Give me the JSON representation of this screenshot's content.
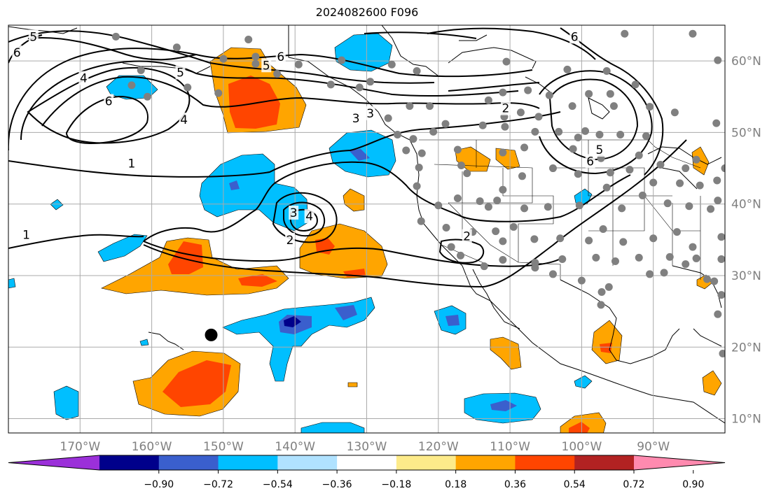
{
  "title": "2024082600 F096",
  "map": {
    "lon_range": [
      -180,
      -80
    ],
    "lat_range": [
      8,
      65
    ],
    "lon_ticks": [
      {
        "value": -170,
        "label": "170°W"
      },
      {
        "value": -160,
        "label": "160°W"
      },
      {
        "value": -150,
        "label": "150°W"
      },
      {
        "value": -140,
        "label": "140°W"
      },
      {
        "value": -130,
        "label": "130°W"
      },
      {
        "value": -120,
        "label": "120°W"
      },
      {
        "value": -110,
        "label": "110°W"
      },
      {
        "value": -100,
        "label": "100°W"
      },
      {
        "value": -90,
        "label": "90°W"
      }
    ],
    "lat_ticks": [
      {
        "value": 60,
        "label": "60°N"
      },
      {
        "value": 50,
        "label": "50°N"
      },
      {
        "value": 40,
        "label": "40°N"
      },
      {
        "value": 30,
        "label": "30°N"
      },
      {
        "value": 20,
        "label": "20°N"
      },
      {
        "value": 10,
        "label": "10°N"
      }
    ],
    "contour_labels": [
      {
        "text": "1",
        "lon": -177.5,
        "lat": 35.7
      },
      {
        "text": "1",
        "lon": -162.8,
        "lat": 45.7
      },
      {
        "text": "2",
        "lon": -140.7,
        "lat": 35.0
      },
      {
        "text": "2",
        "lon": -116.0,
        "lat": 35.5
      },
      {
        "text": "2",
        "lon": -110.6,
        "lat": 53.4
      },
      {
        "text": "3",
        "lon": -140.2,
        "lat": 38.8
      },
      {
        "text": "3",
        "lon": -129.5,
        "lat": 52.7
      },
      {
        "text": "3",
        "lon": -131.5,
        "lat": 52.0
      },
      {
        "text": "4",
        "lon": -138.0,
        "lat": 38.3
      },
      {
        "text": "4",
        "lon": -155.5,
        "lat": 51.8
      },
      {
        "text": "4",
        "lon": -169.5,
        "lat": 57.6
      },
      {
        "text": "5",
        "lon": -144.0,
        "lat": 59.4
      },
      {
        "text": "5",
        "lon": -156.0,
        "lat": 58.4
      },
      {
        "text": "5",
        "lon": -176.5,
        "lat": 63.4
      },
      {
        "text": "5",
        "lon": -97.5,
        "lat": 47.6
      },
      {
        "text": "6",
        "lon": -142.0,
        "lat": 60.6
      },
      {
        "text": "6",
        "lon": -178.8,
        "lat": 61.2
      },
      {
        "text": "6",
        "lon": -101.0,
        "lat": 63.4
      },
      {
        "text": "6",
        "lon": -98.8,
        "lat": 46.0
      },
      {
        "text": "6",
        "lon": -166.0,
        "lat": 54.4
      }
    ],
    "cyclone_marker": {
      "lon": -151.7,
      "lat": 21.7
    },
    "stations": [
      [
        -165,
        63.4
      ],
      [
        -156.5,
        61.9
      ],
      [
        -146.5,
        63.0
      ],
      [
        -150,
        60.3
      ],
      [
        -145.5,
        59.6
      ],
      [
        -161.5,
        58.7
      ],
      [
        -142.5,
        58.2
      ],
      [
        -135,
        56.7
      ],
      [
        -133.5,
        60.1
      ],
      [
        -129.5,
        57.1
      ],
      [
        -126.5,
        59.5
      ],
      [
        -131,
        56.3
      ],
      [
        -123,
        58.6
      ],
      [
        -110.5,
        59.9
      ],
      [
        -111,
        55.6
      ],
      [
        -107.5,
        55.9
      ],
      [
        -102,
        58.8
      ],
      [
        -96.5,
        58.6
      ],
      [
        -94,
        63.8
      ],
      [
        -84.5,
        63.8
      ],
      [
        -81,
        60.1
      ],
      [
        -124,
        53.7
      ],
      [
        -121.2,
        53.7
      ],
      [
        -113,
        54.5
      ],
      [
        -108.5,
        52.8
      ],
      [
        -110.8,
        52.2
      ],
      [
        -106,
        52.2
      ],
      [
        -104.5,
        55.2
      ],
      [
        -101.3,
        53.7
      ],
      [
        -99,
        55.4
      ],
      [
        -96,
        55.4
      ],
      [
        -92.5,
        56.7
      ],
      [
        -90.5,
        53.6
      ],
      [
        -87,
        52.8
      ],
      [
        -81.2,
        51.3
      ],
      [
        -162.8,
        56.6
      ],
      [
        -160.6,
        55.0
      ],
      [
        -155,
        56.3
      ],
      [
        -127,
        52.0
      ],
      [
        -123.5,
        49.1
      ],
      [
        -125.7,
        49.7
      ],
      [
        -120.7,
        50.1
      ],
      [
        -119,
        51.2
      ],
      [
        -113.8,
        51.0
      ],
      [
        -110.7,
        50.8
      ],
      [
        -106.5,
        50.1
      ],
      [
        -103.2,
        50.1
      ],
      [
        -100.5,
        49.3
      ],
      [
        -97.5,
        49.7
      ],
      [
        -94.6,
        49.7
      ],
      [
        -91,
        49.5
      ],
      [
        -95.5,
        53.7
      ],
      [
        -99.5,
        50.2
      ],
      [
        -124.5,
        47.5
      ],
      [
        -122.3,
        47.1
      ],
      [
        -117.3,
        47.6
      ],
      [
        -111,
        47.2
      ],
      [
        -108,
        47.9
      ],
      [
        -101.2,
        47.7
      ],
      [
        -97.3,
        46.4
      ],
      [
        -92,
        46.8
      ],
      [
        -89,
        45.5
      ],
      [
        -85.5,
        45
      ],
      [
        -84,
        46.2
      ],
      [
        -122.7,
        45.1
      ],
      [
        -123,
        42.5
      ],
      [
        -116,
        44.3
      ],
      [
        -111,
        42
      ],
      [
        -108.3,
        43.9
      ],
      [
        -104,
        45
      ],
      [
        -100.5,
        44.2
      ],
      [
        -96,
        44.4
      ],
      [
        -93.3,
        44.8
      ],
      [
        -90,
        43
      ],
      [
        -86.3,
        42.9
      ],
      [
        -83.5,
        42.6
      ],
      [
        -81.1,
        43.3
      ],
      [
        -80,
        45
      ],
      [
        -120,
        39.8
      ],
      [
        -117.3,
        40.8
      ],
      [
        -113,
        39.6
      ],
      [
        -111.8,
        40.5
      ],
      [
        -108,
        39.4
      ],
      [
        -104.7,
        39.6
      ],
      [
        -100.3,
        39.8
      ],
      [
        -96.5,
        42.3
      ],
      [
        -94.4,
        39.4
      ],
      [
        -91.5,
        41.2
      ],
      [
        -88,
        40.1
      ],
      [
        -85,
        39.7
      ],
      [
        -82,
        39.3
      ],
      [
        -81,
        40.5
      ],
      [
        -122.4,
        37.6
      ],
      [
        -118.9,
        36.7
      ],
      [
        -115.2,
        36.1
      ],
      [
        -112,
        36.2
      ],
      [
        -106.6,
        35.1
      ],
      [
        -103,
        35.2
      ],
      [
        -99,
        34.9
      ],
      [
        -97,
        36.5
      ],
      [
        -94.2,
        34.7
      ],
      [
        -90,
        35.2
      ],
      [
        -86.7,
        36.1
      ],
      [
        -84.5,
        34
      ],
      [
        -80.5,
        35.4
      ],
      [
        -118.2,
        34
      ],
      [
        -116.9,
        32.8
      ],
      [
        -111,
        32.2
      ],
      [
        -106.5,
        31.8
      ],
      [
        -102.7,
        32.3
      ],
      [
        -98,
        32.5
      ],
      [
        -95.3,
        32
      ],
      [
        -92,
        32.5
      ],
      [
        -87.7,
        32.6
      ],
      [
        -84,
        32.4
      ],
      [
        -80.5,
        32.3
      ],
      [
        -81.5,
        29.2
      ],
      [
        -104,
        30.2
      ],
      [
        -100,
        29.3
      ],
      [
        -97.2,
        27.7
      ],
      [
        -96.2,
        28.4
      ],
      [
        -97.3,
        25.9
      ],
      [
        -90.5,
        30.2
      ],
      [
        -88.5,
        30.4
      ],
      [
        -85.5,
        31.6
      ],
      [
        -82.5,
        29.5
      ],
      [
        -80.5,
        27.3
      ],
      [
        -81,
        24.6
      ],
      [
        -80.3,
        19.1
      ],
      [
        -145.5,
        60.6
      ],
      [
        -150.7,
        55.5
      ],
      [
        -139.5,
        59.5
      ],
      [
        -106.5,
        31.1
      ],
      [
        -113.6,
        31.3
      ],
      [
        -111,
        34.8
      ],
      [
        -109.5,
        36.8
      ],
      [
        -114.2,
        40.4
      ],
      [
        -116.8,
        45.4
      ]
    ],
    "colorbar": {
      "ticks": [
        "−0.90",
        "−0.72",
        "−0.54",
        "−0.36",
        "−0.18",
        "0.18",
        "0.36",
        "0.54",
        "0.72",
        "0.90"
      ],
      "colors": [
        "#9b30d9",
        "#00008b",
        "#3a5fcd",
        "#00bfff",
        "#b0e2ff",
        "#ffffff",
        "#fdeb8a",
        "#ffa500",
        "#ff4500",
        "#b22222",
        "#ff8aaf"
      ]
    }
  }
}
